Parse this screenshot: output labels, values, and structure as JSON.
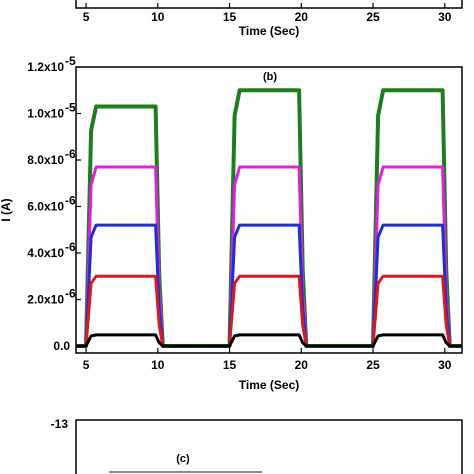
{
  "chart_data": [
    {
      "type": "line",
      "panel_label": "",
      "xlabel": "Time (Sec)",
      "x_ticks": [
        "5",
        "10",
        "15",
        "20",
        "25",
        "30"
      ],
      "xlim": [
        4.3,
        31.2
      ]
    },
    {
      "type": "line",
      "panel_label": "(b)",
      "xlabel": "Time (Sec)",
      "ylabel": "I (A)",
      "xlim": [
        4.3,
        31.2
      ],
      "ylim": [
        -3e-07,
        1.2e-05
      ],
      "x_ticks": [
        "5",
        "10",
        "15",
        "20",
        "25",
        "30"
      ],
      "y_ticks": [
        {
          "mant": "0.0",
          "exp": ""
        },
        {
          "mant": "2.0x10",
          "exp": "-6"
        },
        {
          "mant": "4.0x10",
          "exp": "-6"
        },
        {
          "mant": "6.0x10",
          "exp": "-6"
        },
        {
          "mant": "8.0x10",
          "exp": "-6"
        },
        {
          "mant": "1.0x10",
          "exp": "-5"
        },
        {
          "mant": "1.2x10",
          "exp": "-5"
        }
      ],
      "pulses_on_off": [
        [
          5.0,
          10.0
        ],
        [
          15.0,
          20.0
        ],
        [
          25.0,
          30.0
        ]
      ],
      "series": [
        {
          "color": "#000000",
          "on_levels": [
            4.8e-07,
            4.8e-07,
            4.8e-07
          ]
        },
        {
          "color": "#d81b1b",
          "on_levels": [
            3e-06,
            3e-06,
            3e-06
          ]
        },
        {
          "color": "#1f2fd0",
          "on_levels": [
            5.2e-06,
            5.2e-06,
            5.2e-06
          ]
        },
        {
          "color": "#e020e0",
          "on_levels": [
            7.7e-06,
            7.7e-06,
            7.7e-06
          ]
        },
        {
          "color": "#1e7d1e",
          "on_levels": [
            1.03e-05,
            1.1e-05,
            1.1e-05
          ]
        }
      ]
    },
    {
      "type": "line",
      "panel_label": "(c)",
      "y_ticks": [
        "-13"
      ]
    }
  ]
}
